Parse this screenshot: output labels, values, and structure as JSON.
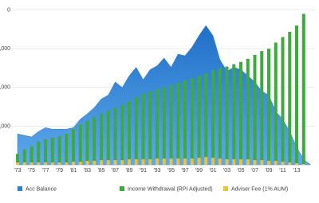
{
  "chart_data": {
    "type": "bar",
    "categories": [
      "'73",
      null,
      "'75",
      null,
      "'77",
      null,
      "'79",
      null,
      "'81",
      null,
      "'83",
      null,
      "'85",
      null,
      "'87",
      null,
      "'89",
      null,
      "'91",
      null,
      "'93",
      null,
      "'95",
      null,
      "'97",
      null,
      "'99",
      null,
      "'01",
      null,
      "'03",
      null,
      "'05",
      null,
      "'07",
      null,
      "'09",
      null,
      "'11",
      null,
      "'13",
      null
    ],
    "series": [
      {
        "name": "Acc Balance",
        "type": "area",
        "color": "#2f7fd3",
        "values": [
          40000,
          38000,
          36000,
          43000,
          48000,
          46000,
          46000,
          46000,
          48000,
          59000,
          66000,
          74000,
          85000,
          90000,
          107000,
          100000,
          115000,
          126000,
          110000,
          123000,
          128000,
          138000,
          126000,
          143000,
          141000,
          152000,
          167000,
          180000,
          167000,
          136000,
          121000,
          126000,
          123000,
          115000,
          107000,
          95000,
          90000,
          69000,
          59000,
          43000,
          23000,
          7000
        ]
      },
      {
        "name": "Income Withdrawal (RPI Adjusted)",
        "type": "bar",
        "color": "#3caa3c",
        "values": [
          14000,
          20000,
          24000,
          30000,
          33000,
          35000,
          37000,
          40000,
          46000,
          52000,
          57000,
          62000,
          66000,
          70000,
          74000,
          78000,
          82000,
          88000,
          92000,
          95000,
          98000,
          100000,
          103000,
          106000,
          109000,
          112000,
          115000,
          118000,
          122000,
          125000,
          127000,
          130000,
          133000,
          137000,
          142000,
          147000,
          150000,
          158000,
          165000,
          172000,
          180000,
          195000
        ]
      },
      {
        "name": "Adviser Fee (1% AUM)",
        "type": "bar",
        "color": "#e8c43c",
        "values": [
          3000,
          3000,
          3000,
          3000,
          3000,
          3000,
          3000,
          3000,
          4000,
          4000,
          5000,
          5000,
          6000,
          6000,
          6000,
          6000,
          7000,
          7000,
          7000,
          7000,
          8000,
          8000,
          8000,
          8000,
          8000,
          8000,
          9000,
          10000,
          9000,
          8000,
          7000,
          7000,
          7000,
          7000,
          6000,
          6000,
          5000,
          5000,
          4000,
          3000,
          2000,
          1000
        ]
      }
    ],
    "ylim": [
      0,
      213000
    ],
    "yticks": [
      {
        "value": 50000,
        "label": ",000"
      },
      {
        "value": 100000,
        "label": ",000"
      },
      {
        "value": 150000,
        "label": ",000"
      },
      {
        "value": 200000,
        "label": "0"
      }
    ],
    "grid": true
  }
}
